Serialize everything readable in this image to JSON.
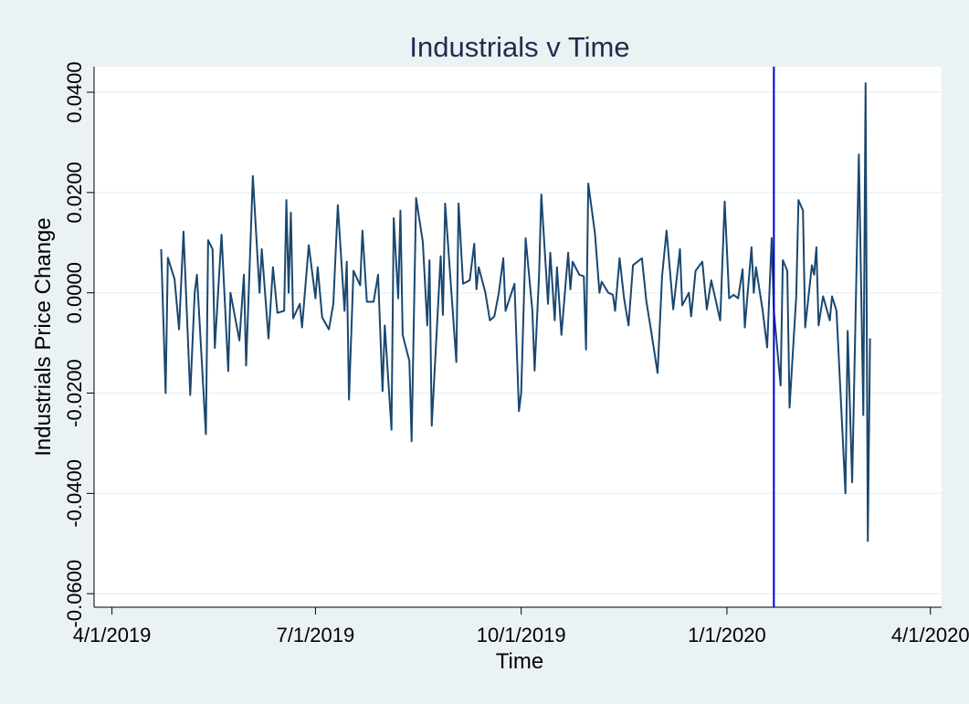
{
  "chart_data": {
    "type": "line",
    "title": "Industrials v Time",
    "x_label": "Time",
    "y_label": "Industrials Price Change",
    "x": [
      "4/23/2019",
      "4/25/2019",
      "4/26/2019",
      "4/29/2019",
      "5/1/2019",
      "5/3/2019",
      "5/6/2019",
      "5/8/2019",
      "5/9/2019",
      "5/13/2019",
      "5/14/2019",
      "5/16/2019",
      "5/17/2019",
      "5/20/2019",
      "5/23/2019",
      "5/24/2019",
      "5/28/2019",
      "5/30/2019",
      "5/31/2019",
      "6/3/2019",
      "6/6/2019",
      "6/7/2019",
      "6/10/2019",
      "6/12/2019",
      "6/14/2019",
      "6/17/2019",
      "6/18/2019",
      "6/19/2019",
      "6/20/2019",
      "6/21/2019",
      "6/24/2019",
      "6/25/2019",
      "6/28/2019",
      "7/1/2019",
      "7/2/2019",
      "7/4/2019",
      "7/7/2019",
      "7/9/2019",
      "7/11/2019",
      "7/14/2019",
      "7/15/2019",
      "7/16/2019",
      "7/18/2019",
      "7/21/2019",
      "7/22/2019",
      "7/24/2019",
      "7/27/2019",
      "7/29/2019",
      "7/31/2019",
      "8/1/2019",
      "8/4/2019",
      "8/5/2019",
      "8/7/2019",
      "8/8/2019",
      "8/9/2019",
      "8/12/2019",
      "8/13/2019",
      "8/15/2019",
      "8/18/2019",
      "8/20/2019",
      "8/21/2019",
      "8/22/2019",
      "8/26/2019",
      "8/27/2019",
      "8/28/2019",
      "9/2/2019",
      "9/3/2019",
      "9/5/2019",
      "9/8/2019",
      "9/10/2019",
      "9/11/2019",
      "9/12/2019",
      "9/15/2019",
      "9/17/2019",
      "9/19/2019",
      "9/21/2019",
      "9/23/2019",
      "9/24/2019",
      "9/28/2019",
      "9/30/2019",
      "10/1/2019",
      "10/3/2019",
      "10/6/2019",
      "10/7/2019",
      "10/9/2019",
      "10/10/2019",
      "10/13/2019",
      "10/14/2019",
      "10/16/2019",
      "10/17/2019",
      "10/19/2019",
      "10/22/2019",
      "10/23/2019",
      "10/24/2019",
      "10/27/2019",
      "10/29/2019",
      "10/30/2019",
      "10/31/2019",
      "11/3/2019",
      "11/5/2019",
      "11/6/2019",
      "11/9/2019",
      "11/11/2019",
      "11/12/2019",
      "11/14/2019",
      "11/16/2019",
      "11/18/2019",
      "11/20/2019",
      "11/24/2019",
      "11/26/2019",
      "11/28/2019",
      "12/1/2019",
      "12/3/2019",
      "12/5/2019",
      "12/8/2019",
      "12/11/2019",
      "12/12/2019",
      "12/15/2019",
      "12/16/2019",
      "12/18/2019",
      "12/21/2019",
      "12/23/2019",
      "12/25/2019",
      "12/29/2019",
      "12/31/2019",
      "1/2/2020",
      "1/4/2020",
      "1/6/2020",
      "1/8/2020",
      "1/9/2020",
      "1/12/2020",
      "1/13/2020",
      "1/14/2020",
      "1/17/2020",
      "1/19/2020",
      "1/21/2020",
      "1/22/2020",
      "1/25/2020",
      "1/26/2020",
      "1/28/2020",
      "1/29/2020",
      "2/1/2020",
      "2/2/2020",
      "2/4/2020",
      "2/5/2020",
      "2/8/2020",
      "2/9/2020",
      "2/10/2020",
      "2/11/2020",
      "2/13/2020",
      "2/16/2020",
      "2/17/2020",
      "2/19/2020",
      "2/23/2020",
      "2/24/2020",
      "2/26/2020",
      "2/29/2020",
      "3/2/2020",
      "3/3/2020",
      "3/4/2020",
      "3/5/2020"
    ],
    "series": [
      {
        "name": "Industrials Price Change",
        "color": "#1a476f",
        "values": [
          0.0087,
          -0.02,
          0.007,
          0.0027,
          -0.0073,
          0.0122,
          -0.0204,
          0,
          0.0036,
          -0.0282,
          0.0105,
          0.0087,
          -0.011,
          0.0116,
          -0.0156,
          0,
          -0.0095,
          0.0036,
          -0.0145,
          0.0233,
          0,
          0.0087,
          -0.0091,
          0.0051,
          -0.004,
          -0.0036,
          0.0185,
          0,
          0.016,
          -0.0051,
          -0.0022,
          -0.0069,
          0.0095,
          -0.0011,
          0.0051,
          -0.0049,
          -0.0073,
          -0.0022,
          0.0175,
          -0.0036,
          0.0062,
          -0.0213,
          0.0044,
          0.0015,
          0.0124,
          -0.0018,
          -0.0018,
          0.0036,
          -0.0196,
          -0.0065,
          -0.0273,
          0.0149,
          -0.0011,
          0.0164,
          -0.0084,
          -0.0136,
          -0.0296,
          0.0189,
          0.0102,
          -0.0065,
          0.0065,
          -0.0265,
          0.0073,
          -0.0044,
          0.0178,
          -0.0138,
          0.0178,
          0.0018,
          0.0025,
          0.0098,
          0.0007,
          0.0051,
          0,
          -0.0055,
          -0.0047,
          0,
          0.0069,
          -0.0036,
          0.0018,
          -0.0236,
          -0.02,
          0.0109,
          -0.0036,
          -0.0155,
          0.0036,
          0.0196,
          -0.0022,
          0.008,
          -0.0055,
          0.0051,
          -0.0084,
          0.008,
          0.0007,
          0.0062,
          0.0036,
          0.0033,
          -0.0113,
          0.0218,
          0.0118,
          0,
          0.0022,
          0,
          -0.0004,
          -0.0036,
          0.0069,
          -0.0011,
          -0.0065,
          0.0055,
          0.0069,
          -0.0018,
          -0.0073,
          -0.016,
          0.0033,
          0.0124,
          -0.0033,
          0.0087,
          -0.0025,
          0,
          -0.0047,
          0.0044,
          0.0062,
          -0.0033,
          0.0025,
          -0.0055,
          0.0182,
          -0.0011,
          -0.0004,
          -0.0011,
          0.0047,
          -0.0069,
          0.0091,
          0,
          0.0051,
          -0.0036,
          -0.0109,
          0.0109,
          -0.0036,
          -0.0185,
          0.0065,
          0.0044,
          -0.0229,
          -0.0007,
          0.0185,
          0.0164,
          -0.0069,
          0.0055,
          0.0036,
          0.0091,
          -0.0065,
          -0.0007,
          -0.0055,
          -0.0007,
          -0.0036,
          -0.04,
          -0.0076,
          -0.0378,
          0.0276,
          -0.0244,
          0.0418,
          -0.0495,
          -0.0091
        ]
      }
    ],
    "xlim": [
      "3/24/2019",
      "4/6/2020"
    ],
    "xticks": [
      "4/1/2019",
      "7/1/2019",
      "10/1/2019",
      "1/1/2020",
      "4/1/2020"
    ],
    "ylim": [
      -0.0627,
      0.0451
    ],
    "yticks": [
      {
        "value": -0.06,
        "label": "-0.0600"
      },
      {
        "value": -0.04,
        "label": "-0.0400"
      },
      {
        "value": -0.02,
        "label": "-0.0200"
      },
      {
        "value": 0,
        "label": "0.0000"
      },
      {
        "value": 0.02,
        "label": "0.0200"
      },
      {
        "value": 0.04,
        "label": "0.0400"
      }
    ],
    "grid": true,
    "vline": {
      "x": "1/22/2020",
      "color": "#0000cc"
    }
  }
}
